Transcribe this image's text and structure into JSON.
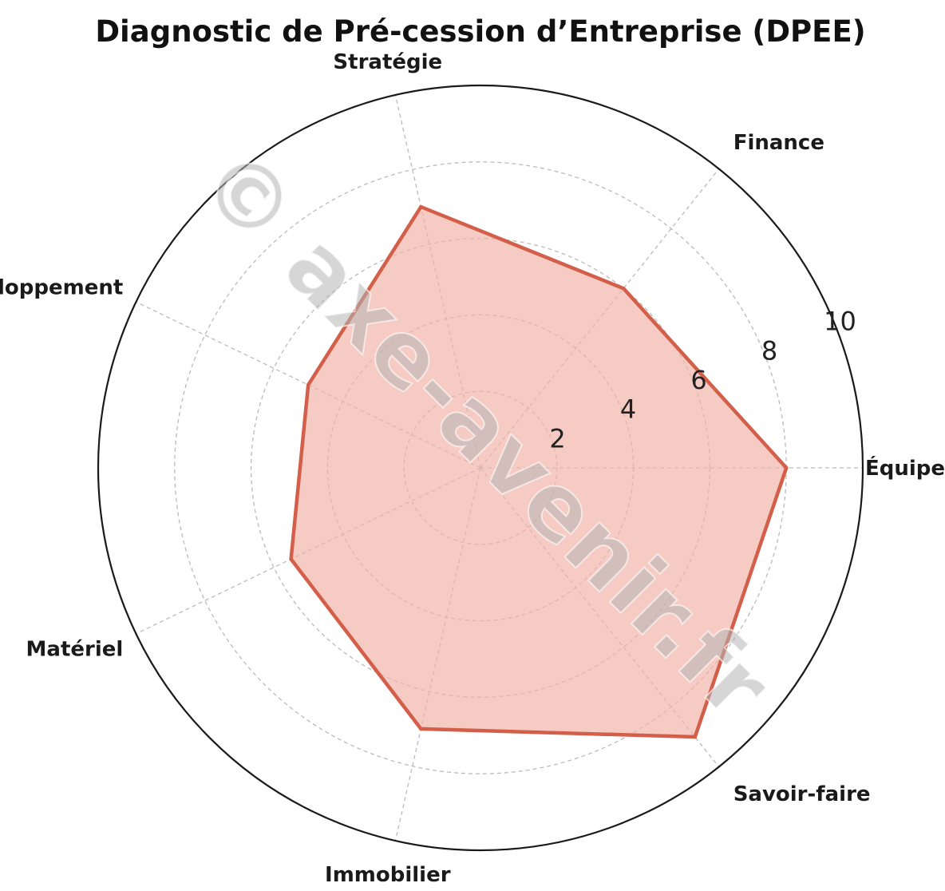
{
  "chart_data": {
    "type": "radar",
    "title": "Diagnostic de Pré-cession d’Entreprise (DPEE)",
    "axes": [
      "Équipe",
      "Finance",
      "Stratégie",
      "Développement",
      "Matériel",
      "Immobilier",
      "Savoir-faire"
    ],
    "values": [
      8.0,
      6.0,
      7.0,
      5.0,
      5.5,
      7.0,
      9.0
    ],
    "rlim": [
      0,
      10
    ],
    "rticks": [
      2,
      4,
      6,
      8,
      10
    ],
    "rtick_labels": [
      "2",
      "4",
      "6",
      "8",
      "10"
    ],
    "grid": true,
    "colors": {
      "line": "#d35f4a",
      "fill": "#f2b3a7",
      "outer_circle": "#1a1a1a",
      "grid": "#bbbbbb"
    },
    "watermark": "© axe-avenir.fr"
  }
}
